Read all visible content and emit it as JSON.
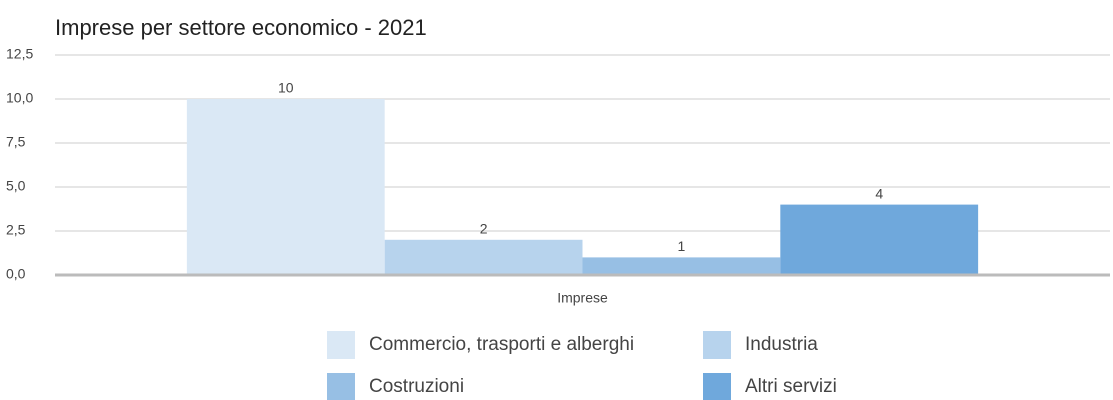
{
  "chart_data": {
    "type": "bar",
    "title": "Imprese per settore economico - 2021",
    "categories": [
      "Imprese"
    ],
    "series": [
      {
        "name": "Commercio, trasporti e alberghi",
        "color": "#dae8f5",
        "values": [
          10
        ]
      },
      {
        "name": "Industria",
        "color": "#b7d3ed",
        "values": [
          2
        ]
      },
      {
        "name": "Costruzioni",
        "color": "#97bfe4",
        "values": [
          1
        ]
      },
      {
        "name": "Altri servizi",
        "color": "#6fa8dc",
        "values": [
          4
        ]
      }
    ],
    "ylim": [
      0,
      12.5
    ],
    "yticks": [
      {
        "value": 0,
        "label": "0,0"
      },
      {
        "value": 2.5,
        "label": "2,5"
      },
      {
        "value": 5,
        "label": "5,0"
      },
      {
        "value": 7.5,
        "label": "7,5"
      },
      {
        "value": 10,
        "label": "10,0"
      },
      {
        "value": 12.5,
        "label": "12,5"
      }
    ],
    "grid": true
  }
}
